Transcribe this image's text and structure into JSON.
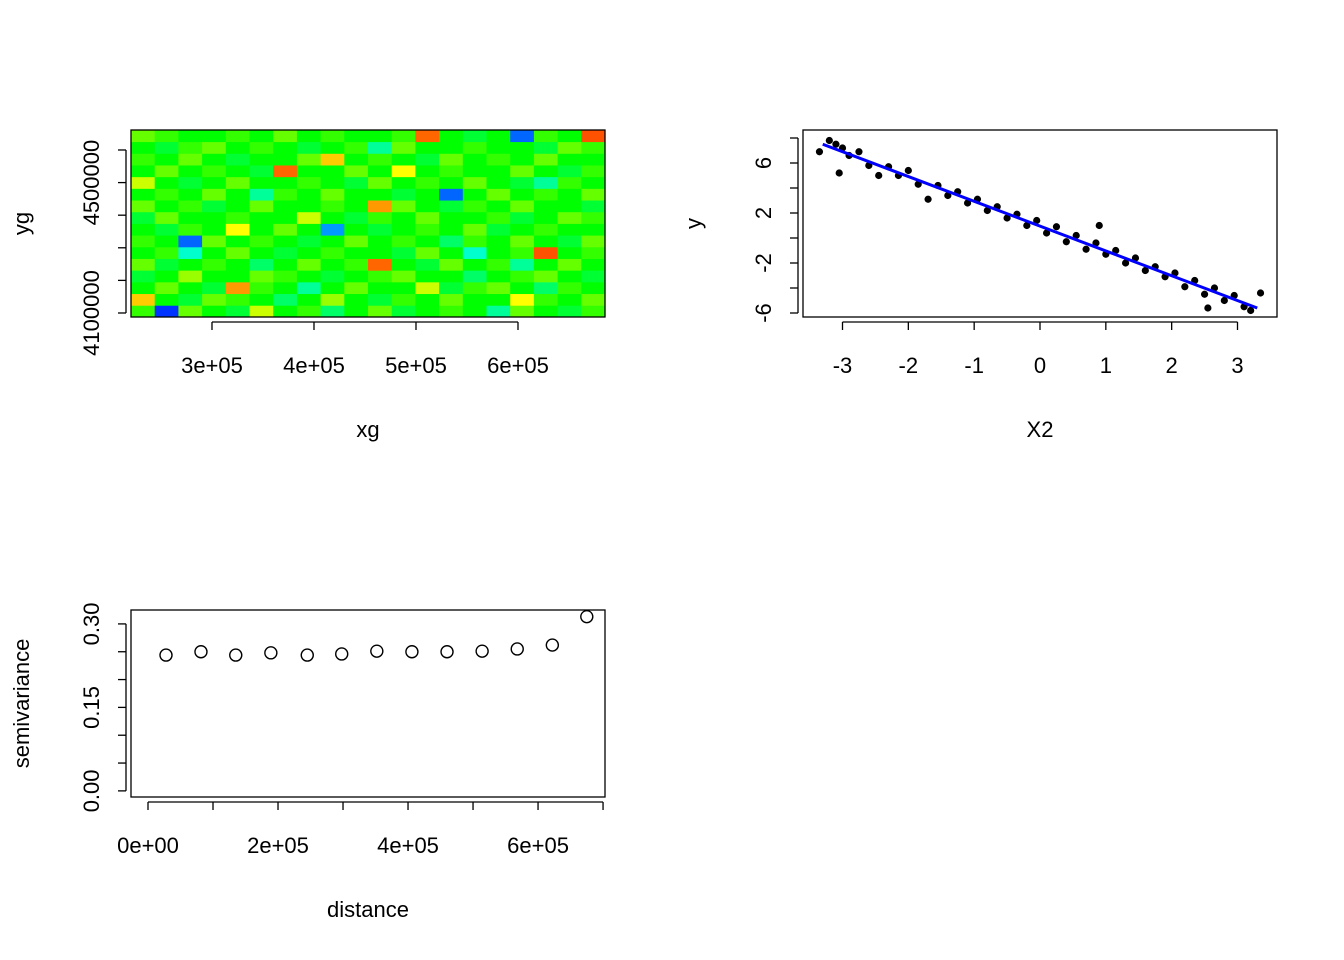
{
  "chart_data": [
    {
      "type": "heatmap",
      "xlabel": "xg",
      "ylabel": "yg",
      "xlim": [
        220600,
        685300
      ],
      "ylim": [
        4087700,
        4661300
      ],
      "xticks": [
        {
          "value": 300000,
          "label": "3e+05"
        },
        {
          "value": 400000,
          "label": "4e+05"
        },
        {
          "value": 500000,
          "label": "5e+05"
        },
        {
          "value": 600000,
          "label": "6e+05"
        }
      ],
      "yticks": [
        4100000,
        4500000
      ],
      "yminorticks": [
        4200000,
        4300000,
        4400000,
        4600000
      ],
      "zlim": [
        0,
        1
      ],
      "colors": [
        "#0000ff",
        "#00ffff",
        "#00ff00",
        "#ffff00",
        "#ff0000"
      ],
      "z": [
        [
          0.55,
          0.05,
          0.6,
          0.5,
          0.45,
          0.7,
          0.5,
          0.55,
          0.4,
          0.5,
          0.6,
          0.45,
          0.5,
          0.55,
          0.5,
          0.35,
          0.6,
          0.5,
          0.45,
          0.55
        ],
        [
          0.8,
          0.5,
          0.45,
          0.6,
          0.55,
          0.5,
          0.4,
          0.5,
          0.65,
          0.5,
          0.45,
          0.55,
          0.5,
          0.6,
          0.5,
          0.5,
          0.75,
          0.55,
          0.5,
          0.6
        ],
        [
          0.5,
          0.6,
          0.5,
          0.45,
          0.85,
          0.55,
          0.5,
          0.35,
          0.5,
          0.6,
          0.5,
          0.5,
          0.7,
          0.45,
          0.55,
          0.6,
          0.5,
          0.4,
          0.55,
          0.5
        ],
        [
          0.45,
          0.5,
          0.65,
          0.5,
          0.5,
          0.6,
          0.55,
          0.5,
          0.45,
          0.5,
          0.55,
          0.6,
          0.5,
          0.5,
          0.4,
          0.5,
          0.55,
          0.6,
          0.5,
          0.45
        ],
        [
          0.6,
          0.45,
          0.5,
          0.55,
          0.5,
          0.4,
          0.5,
          0.6,
          0.5,
          0.55,
          0.9,
          0.5,
          0.45,
          0.6,
          0.5,
          0.55,
          0.35,
          0.5,
          0.6,
          0.5
        ],
        [
          0.5,
          0.55,
          0.3,
          0.5,
          0.6,
          0.5,
          0.45,
          0.5,
          0.55,
          0.5,
          0.5,
          0.45,
          0.6,
          0.5,
          0.3,
          0.5,
          0.55,
          0.92,
          0.5,
          0.55
        ],
        [
          0.55,
          0.5,
          0.1,
          0.6,
          0.5,
          0.55,
          0.5,
          0.45,
          0.5,
          0.6,
          0.5,
          0.55,
          0.5,
          0.4,
          0.55,
          0.5,
          0.6,
          0.5,
          0.45,
          0.6
        ],
        [
          0.5,
          0.45,
          0.55,
          0.5,
          0.75,
          0.5,
          0.6,
          0.5,
          0.15,
          0.5,
          0.45,
          0.5,
          0.55,
          0.5,
          0.6,
          0.45,
          0.5,
          0.55,
          0.5,
          0.5
        ],
        [
          0.45,
          0.6,
          0.5,
          0.5,
          0.55,
          0.5,
          0.5,
          0.7,
          0.5,
          0.45,
          0.55,
          0.5,
          0.6,
          0.5,
          0.5,
          0.55,
          0.45,
          0.5,
          0.6,
          0.55
        ],
        [
          0.6,
          0.5,
          0.55,
          0.45,
          0.5,
          0.6,
          0.5,
          0.5,
          0.55,
          0.5,
          0.85,
          0.6,
          0.5,
          0.45,
          0.55,
          0.5,
          0.6,
          0.5,
          0.5,
          0.45
        ],
        [
          0.5,
          0.55,
          0.5,
          0.6,
          0.5,
          0.35,
          0.55,
          0.5,
          0.6,
          0.5,
          0.5,
          0.45,
          0.5,
          0.1,
          0.5,
          0.6,
          0.5,
          0.55,
          0.5,
          0.6
        ],
        [
          0.7,
          0.5,
          0.45,
          0.5,
          0.6,
          0.5,
          0.5,
          0.55,
          0.5,
          0.45,
          0.6,
          0.5,
          0.55,
          0.5,
          0.6,
          0.5,
          0.45,
          0.35,
          0.55,
          0.5
        ],
        [
          0.5,
          0.6,
          0.5,
          0.55,
          0.5,
          0.45,
          0.9,
          0.5,
          0.5,
          0.6,
          0.5,
          0.75,
          0.5,
          0.55,
          0.5,
          0.5,
          0.6,
          0.5,
          0.45,
          0.55
        ],
        [
          0.55,
          0.5,
          0.6,
          0.5,
          0.45,
          0.5,
          0.5,
          0.6,
          0.8,
          0.5,
          0.55,
          0.5,
          0.45,
          0.6,
          0.5,
          0.55,
          0.5,
          0.6,
          0.5,
          0.5
        ],
        [
          0.5,
          0.45,
          0.55,
          0.6,
          0.5,
          0.55,
          0.5,
          0.45,
          0.5,
          0.55,
          0.35,
          0.6,
          0.5,
          0.5,
          0.55,
          0.5,
          0.5,
          0.45,
          0.6,
          0.55
        ],
        [
          0.6,
          0.55,
          0.5,
          0.5,
          0.55,
          0.5,
          0.6,
          0.5,
          0.55,
          0.5,
          0.5,
          0.55,
          0.9,
          0.5,
          0.45,
          0.5,
          0.1,
          0.55,
          0.5,
          0.92
        ]
      ]
    },
    {
      "type": "scatter",
      "xlabel": "X2",
      "ylabel": "y",
      "marker": "filled",
      "xlim": [
        -3.6,
        3.6
      ],
      "ylim": [
        -6.32,
        8.64
      ],
      "xticks": [
        -3,
        -2,
        -1,
        0,
        1,
        2,
        3
      ],
      "yticks": [
        -6,
        -2,
        2,
        6
      ],
      "yminorticks": [
        -4,
        0,
        4,
        8
      ],
      "color": "#000000",
      "x": [
        -3.35,
        -3.2,
        -3.1,
        -3.05,
        -3.0,
        -2.9,
        -2.75,
        -2.6,
        -2.45,
        -2.3,
        -2.15,
        -2.0,
        -1.85,
        -1.7,
        -1.55,
        -1.4,
        -1.25,
        -1.1,
        -0.95,
        -0.8,
        -0.65,
        -0.5,
        -0.35,
        -0.2,
        -0.05,
        0.1,
        0.25,
        0.4,
        0.55,
        0.7,
        0.85,
        0.9,
        1.0,
        1.15,
        1.3,
        1.45,
        1.6,
        1.75,
        1.9,
        2.05,
        2.2,
        2.35,
        2.5,
        2.55,
        2.65,
        2.8,
        2.95,
        3.1,
        3.2,
        3.35
      ],
      "values": [
        6.9,
        7.8,
        7.5,
        5.2,
        7.2,
        6.6,
        6.9,
        5.8,
        5.0,
        5.7,
        5.0,
        5.4,
        4.3,
        3.1,
        4.2,
        3.4,
        3.7,
        2.8,
        3.1,
        2.2,
        2.5,
        1.6,
        1.9,
        1.0,
        1.4,
        0.4,
        0.9,
        -0.3,
        0.2,
        -0.9,
        -0.4,
        1.0,
        -1.3,
        -1.0,
        -2.0,
        -1.6,
        -2.6,
        -2.3,
        -3.1,
        -2.8,
        -3.9,
        -3.4,
        -4.5,
        -5.6,
        -4.0,
        -5.0,
        -4.6,
        -5.5,
        -5.8,
        -4.4
      ],
      "fit": {
        "x": [
          -3.3,
          3.3
        ],
        "values": [
          7.5,
          -5.6
        ],
        "color": "#0000ff"
      }
    },
    {
      "type": "scatter",
      "xlabel": "distance",
      "ylabel": "semivariance",
      "marker": "open",
      "xlim": [
        -26150,
        703000
      ],
      "ylim": [
        -0.011,
        0.325
      ],
      "xticks": [
        {
          "value": 0,
          "label": "0e+00"
        },
        {
          "value": 200000,
          "label": "2e+05"
        },
        {
          "value": 400000,
          "label": "4e+05"
        },
        {
          "value": 600000,
          "label": "6e+05"
        }
      ],
      "xminorticks": [
        100000,
        300000,
        500000,
        700000
      ],
      "yticks": [
        {
          "value": 0,
          "label": "0.00"
        },
        {
          "value": 0.15,
          "label": "0.15"
        },
        {
          "value": 0.3,
          "label": "0.30"
        }
      ],
      "yminorticks": [
        0.05,
        0.1,
        0.2,
        0.25
      ],
      "color": "#000000",
      "x": [
        27700,
        81500,
        135000,
        189000,
        245000,
        298000,
        352000,
        406000,
        460000,
        514000,
        568000,
        622000,
        675000
      ],
      "values": [
        0.244,
        0.25,
        0.244,
        0.248,
        0.244,
        0.246,
        0.251,
        0.25,
        0.25,
        0.251,
        0.255,
        0.262,
        0.313
      ]
    }
  ]
}
